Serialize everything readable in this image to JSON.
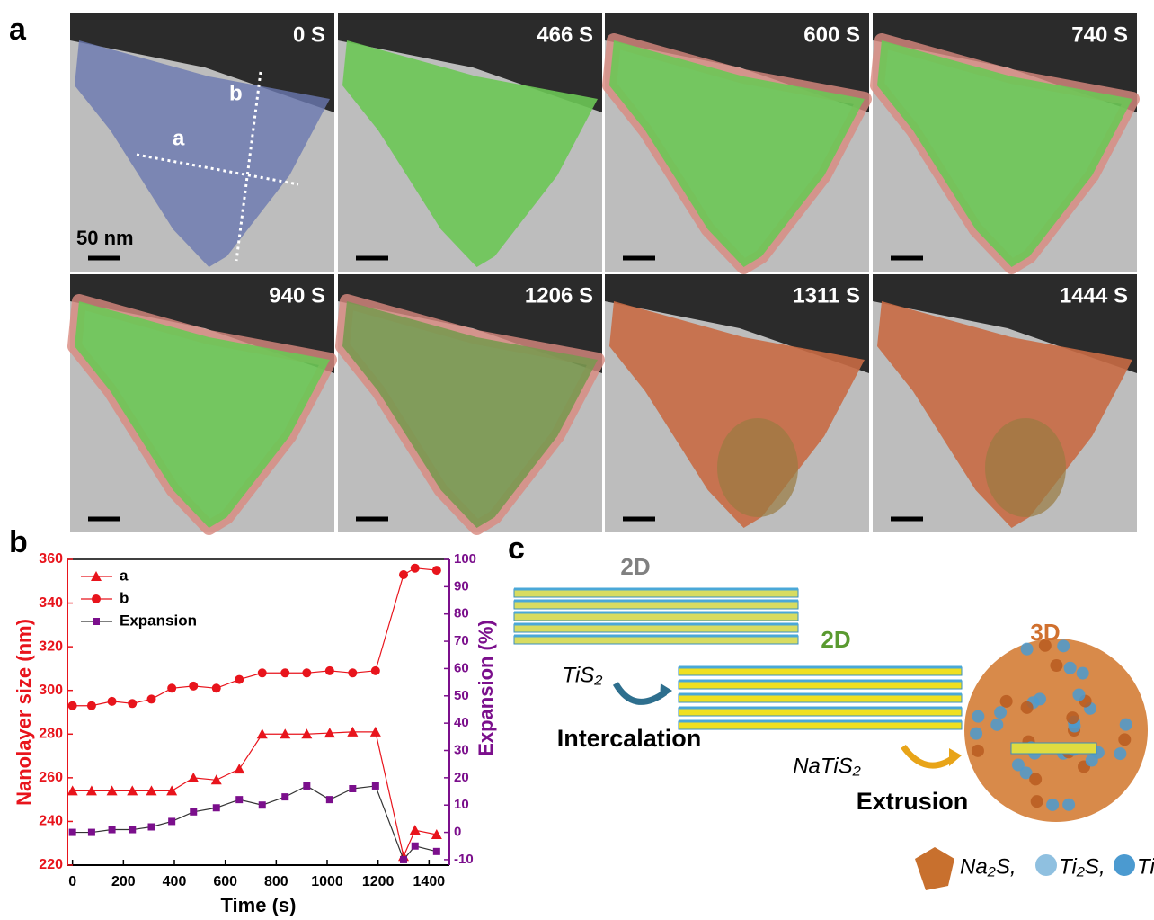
{
  "panel_labels": [
    "a",
    "b",
    "c"
  ],
  "panel_a": {
    "frames": [
      {
        "time": "0 S"
      },
      {
        "time": "466 S"
      },
      {
        "time": "600 S"
      },
      {
        "time": "740 S"
      },
      {
        "time": "940 S"
      },
      {
        "time": "1206 S"
      },
      {
        "time": "1311 S"
      },
      {
        "time": "1444 S"
      }
    ],
    "scale_bar": "50 nm",
    "dimension_labels": [
      "a",
      "b"
    ]
  },
  "chart_data": {
    "type": "line",
    "xlabel": "Time (s)",
    "ylabel": "Nanolayer size (nm)",
    "y2label": "Expansion (%)",
    "x": [
      0,
      75,
      155,
      235,
      310,
      390,
      475,
      565,
      655,
      745,
      835,
      920,
      1010,
      1100,
      1190,
      1300,
      1345,
      1430
    ],
    "series": [
      {
        "name": "a",
        "color": "#e8141c",
        "marker": "triangle",
        "values": [
          254,
          254,
          254,
          254,
          254,
          254,
          260,
          259,
          264,
          280,
          280,
          280,
          280.5,
          281,
          281,
          224,
          236,
          234
        ]
      },
      {
        "name": "b",
        "color": "#e8141c",
        "marker": "circle",
        "values": [
          293,
          293,
          295,
          294,
          296,
          301,
          302,
          301,
          305,
          308,
          308,
          308,
          309,
          308,
          309,
          353,
          356,
          355
        ]
      },
      {
        "name": "Expansion",
        "color": "#7b0f8c",
        "line_color": "#333333",
        "marker": "square",
        "axis": "y2",
        "values": [
          0,
          0,
          1,
          1,
          2,
          4,
          7.5,
          9,
          12,
          10,
          13,
          17,
          12,
          16,
          17,
          -10,
          -5,
          -7
        ]
      }
    ],
    "xlim": [
      -20,
      1480
    ],
    "xticks": [
      0,
      200,
      400,
      600,
      800,
      1000,
      1200,
      1400
    ],
    "ylim": [
      220,
      360
    ],
    "yticks": [
      220,
      240,
      260,
      280,
      300,
      320,
      340,
      360
    ],
    "y2lim": [
      -12,
      100
    ],
    "y2ticks": [
      -10,
      0,
      10,
      20,
      30,
      40,
      50,
      60,
      70,
      80,
      90,
      100
    ],
    "ycolor": "#e8141c",
    "y2color": "#7b0f8c",
    "legend": "upper left"
  },
  "panel_c": {
    "stage_labels": [
      "2D",
      "2D",
      "3D"
    ],
    "compounds": [
      "TiS₂",
      "NaTiS₂"
    ],
    "processes": [
      "Intercalation",
      "Extrusion"
    ],
    "legend": [
      "Na₂S,",
      "Ti₂S,",
      "Ti"
    ]
  }
}
